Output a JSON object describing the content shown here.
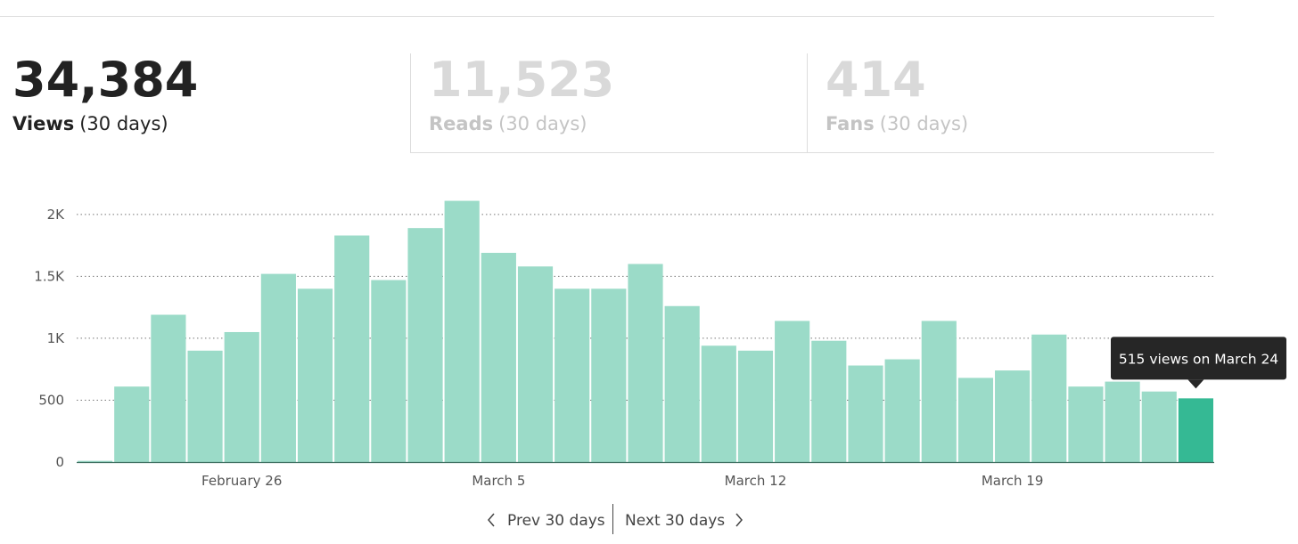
{
  "stats": [
    {
      "number": "34,384",
      "label": "Views",
      "period": "(30 days)"
    },
    {
      "number": "11,523",
      "label": "Reads",
      "period": "(30 days)"
    },
    {
      "number": "414",
      "label": "Fans",
      "period": "(30 days)"
    }
  ],
  "chart_data": {
    "type": "bar",
    "categories": [
      null,
      null,
      null,
      null,
      "February 26",
      null,
      null,
      null,
      null,
      null,
      null,
      "March 5",
      null,
      null,
      null,
      null,
      null,
      null,
      "March 12",
      null,
      null,
      null,
      null,
      null,
      null,
      "March 19",
      null,
      null,
      null,
      null,
      null
    ],
    "values": [
      10,
      610,
      1190,
      900,
      1050,
      1520,
      1400,
      1830,
      1470,
      1890,
      2110,
      1690,
      1580,
      1400,
      1400,
      1600,
      1260,
      940,
      900,
      1140,
      980,
      780,
      830,
      1140,
      680,
      740,
      1030,
      610,
      650,
      570,
      515
    ],
    "colors": [
      "#9bdbc8",
      "#9bdbc8",
      "#9bdbc8",
      "#9bdbc8",
      "#9bdbc8",
      "#9bdbc8",
      "#9bdbc8",
      "#9bdbc8",
      "#9bdbc8",
      "#9bdbc8",
      "#9bdbc8",
      "#9bdbc8",
      "#9bdbc8",
      "#9bdbc8",
      "#9bdbc8",
      "#9bdbc8",
      "#9bdbc8",
      "#9bdbc8",
      "#9bdbc8",
      "#9bdbc8",
      "#9bdbc8",
      "#9bdbc8",
      "#9bdbc8",
      "#9bdbc8",
      "#9bdbc8",
      "#9bdbc8",
      "#9bdbc8",
      "#9bdbc8",
      "#9bdbc8",
      "#9bdbc8",
      "#35b994"
    ],
    "ylim": [
      0,
      2150
    ],
    "yticks": [
      0,
      500,
      {
        "value": 1000,
        "label": "1K"
      },
      {
        "value": 1500,
        "label": "1.5K"
      },
      {
        "value": 2000,
        "label": "2K"
      }
    ],
    "grid": true,
    "tooltip": "515 views on March 24"
  },
  "nav": {
    "prev": "Prev 30 days",
    "next": "Next 30 days"
  }
}
